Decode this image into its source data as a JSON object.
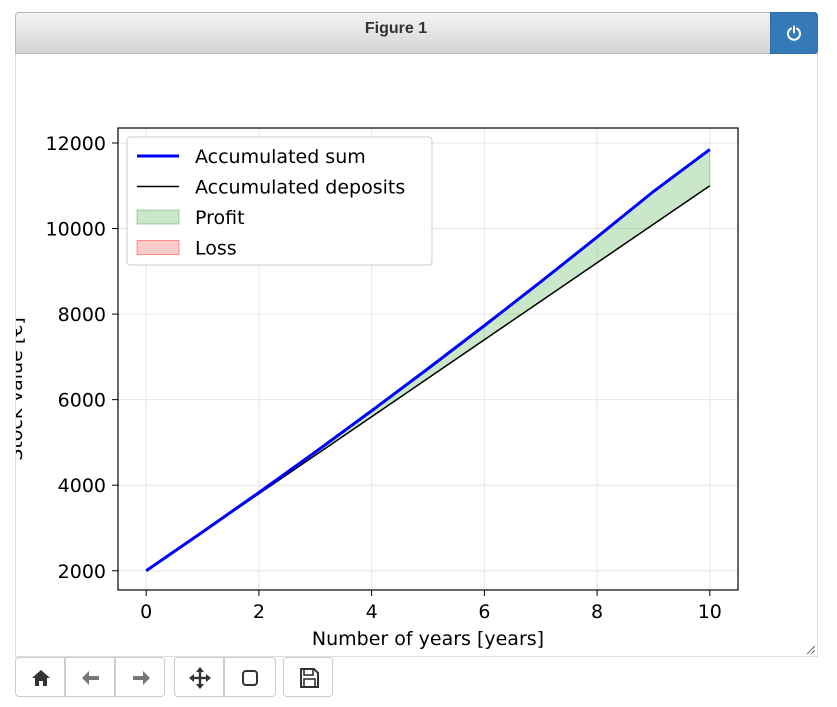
{
  "window": {
    "title": "Figure 1",
    "close_icon": "power-icon"
  },
  "toolbar": {
    "buttons": [
      {
        "name": "home-button",
        "icon": "home-icon"
      },
      {
        "name": "back-button",
        "icon": "arrow-left-icon"
      },
      {
        "name": "forward-button",
        "icon": "arrow-right-icon"
      },
      {
        "name": "pan-button",
        "icon": "move-icon"
      },
      {
        "name": "zoom-button",
        "icon": "square-icon"
      },
      {
        "name": "save-button",
        "icon": "floppy-icon"
      }
    ]
  },
  "chart_data": {
    "type": "line",
    "title": "",
    "xlabel": "Number of years [years]",
    "ylabel": "Stock value [€]",
    "xlim": [
      -0.5,
      10.5
    ],
    "ylim": [
      1550,
      12350
    ],
    "xticks": [
      0,
      2,
      4,
      6,
      8,
      10
    ],
    "yticks": [
      2000,
      4000,
      6000,
      8000,
      10000,
      12000
    ],
    "grid": true,
    "legend_position": "top-left",
    "series": [
      {
        "name": "Accumulated sum",
        "color": "#0000ff",
        "x": [
          0,
          1,
          2,
          3,
          4,
          5,
          6,
          7,
          8,
          9,
          10
        ],
        "y": [
          2000,
          2905,
          3830,
          4775,
          5740,
          6725,
          7730,
          8755,
          9800,
          10865,
          11850
        ]
      },
      {
        "name": "Accumulated deposits",
        "color": "#000000",
        "x": [
          0,
          1,
          2,
          3,
          4,
          5,
          6,
          7,
          8,
          9,
          10
        ],
        "y": [
          2000,
          2900,
          3800,
          4700,
          5600,
          6500,
          7400,
          8300,
          9200,
          10100,
          11000
        ]
      }
    ],
    "fills": [
      {
        "name": "Profit",
        "color": "#2ca02c",
        "alpha": 0.25
      },
      {
        "name": "Loss",
        "color": "#ff0000",
        "alpha": 0.2
      }
    ]
  }
}
